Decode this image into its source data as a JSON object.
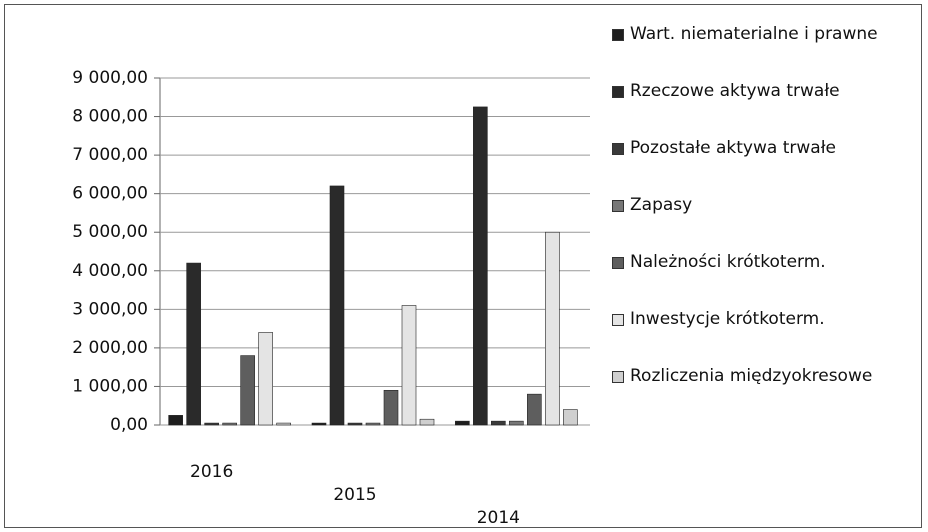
{
  "chart_data": {
    "type": "bar",
    "categories": [
      "2016",
      "2015",
      "2014"
    ],
    "series": [
      {
        "name": "Wart. niematerialne i prawne",
        "color": "#1e1e1e",
        "values": [
          250,
          50,
          100
        ]
      },
      {
        "name": "Rzeczowe aktywa trwałe",
        "color": "#2a2a2a",
        "values": [
          4200,
          6200,
          8250
        ]
      },
      {
        "name": "Pozostałe aktywa trwałe",
        "color": "#3a3a3a",
        "values": [
          50,
          50,
          100
        ]
      },
      {
        "name": "Zapasy",
        "color": "#777777",
        "values": [
          50,
          50,
          100
        ]
      },
      {
        "name": "Należności krótkoterm.",
        "color": "#5e5e5e",
        "values": [
          1800,
          900,
          800
        ]
      },
      {
        "name": "Inwestycje krótkoterm.",
        "color": "#e4e4e4",
        "values": [
          2400,
          3100,
          5000
        ]
      },
      {
        "name": "Rozliczenia międzyokresowe",
        "color": "#cfcfcf",
        "values": [
          50,
          150,
          400
        ]
      }
    ],
    "ylim": [
      0,
      9000
    ],
    "yticks": [
      {
        "value": 0,
        "label": "0,00"
      },
      {
        "value": 1000,
        "label": "1 000,00"
      },
      {
        "value": 2000,
        "label": "2 000,00"
      },
      {
        "value": 3000,
        "label": "3 000,00"
      },
      {
        "value": 4000,
        "label": "4 000,00"
      },
      {
        "value": 5000,
        "label": "5 000,00"
      },
      {
        "value": 6000,
        "label": "6 000,00"
      },
      {
        "value": 7000,
        "label": "7 000,00"
      },
      {
        "value": 8000,
        "label": "8 000,00"
      },
      {
        "value": 9000,
        "label": "9 000,00"
      }
    ],
    "grid": true,
    "legend": "right"
  }
}
